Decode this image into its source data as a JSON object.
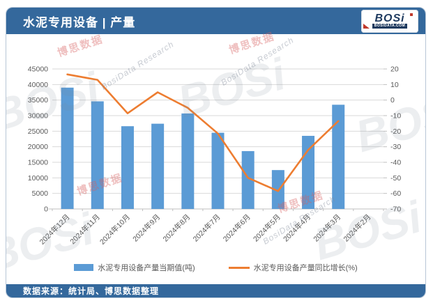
{
  "header": {
    "title": "水泥专用设备 | 产量",
    "logo": {
      "text": "BOSi",
      "domain": "BOSIDATA.COM"
    }
  },
  "footer": {
    "source": "数据来源：统计局、博思数据整理"
  },
  "watermarks": {
    "cn": "博思数据",
    "en": "BosiData Research",
    "logo": "BOSi"
  },
  "colors": {
    "bar": "#5b9bd5",
    "line": "#ed7d31",
    "band": "#34689c",
    "grid": "#d9d9d9",
    "tick": "#bfbfbf",
    "axis_text": "#595959"
  },
  "chart_data": {
    "type": "bar",
    "subtype": "bar+line combo, dual axis",
    "title": "水泥专用设备 | 产量",
    "categories": [
      "2024年12月",
      "2024年11月",
      "2024年10月",
      "2024年9月",
      "2024年8月",
      "2024年7月",
      "2024年6月",
      "2024年5月",
      "2024年4月",
      "2024年3月",
      "2024年2月"
    ],
    "series": [
      {
        "name": "水泥专用设备产量当期值(吨)",
        "type": "bar",
        "axis": "left",
        "values": [
          39000,
          34600,
          26600,
          27400,
          30700,
          24500,
          18600,
          12500,
          23500,
          33500,
          null
        ]
      },
      {
        "name": "水泥专用设备产量同比增长(%)",
        "type": "line",
        "axis": "right",
        "values": [
          16.5,
          13,
          -8.5,
          5,
          -5,
          -21.5,
          -50,
          -58.5,
          -32,
          -13.5,
          null
        ]
      }
    ],
    "left_axis": {
      "min": 0,
      "max": 45000,
      "step": 5000,
      "ticks": [
        "45000",
        "40000",
        "35000",
        "30000",
        "25000",
        "20000",
        "15000",
        "10000",
        "5000",
        "0"
      ]
    },
    "right_axis": {
      "min": -70,
      "max": 20,
      "step": 10,
      "ticks": [
        "20",
        "10",
        "0",
        "-10",
        "-20",
        "-30",
        "-40",
        "-50",
        "-60",
        "-70"
      ]
    },
    "grid": true,
    "legend_position": "bottom"
  }
}
